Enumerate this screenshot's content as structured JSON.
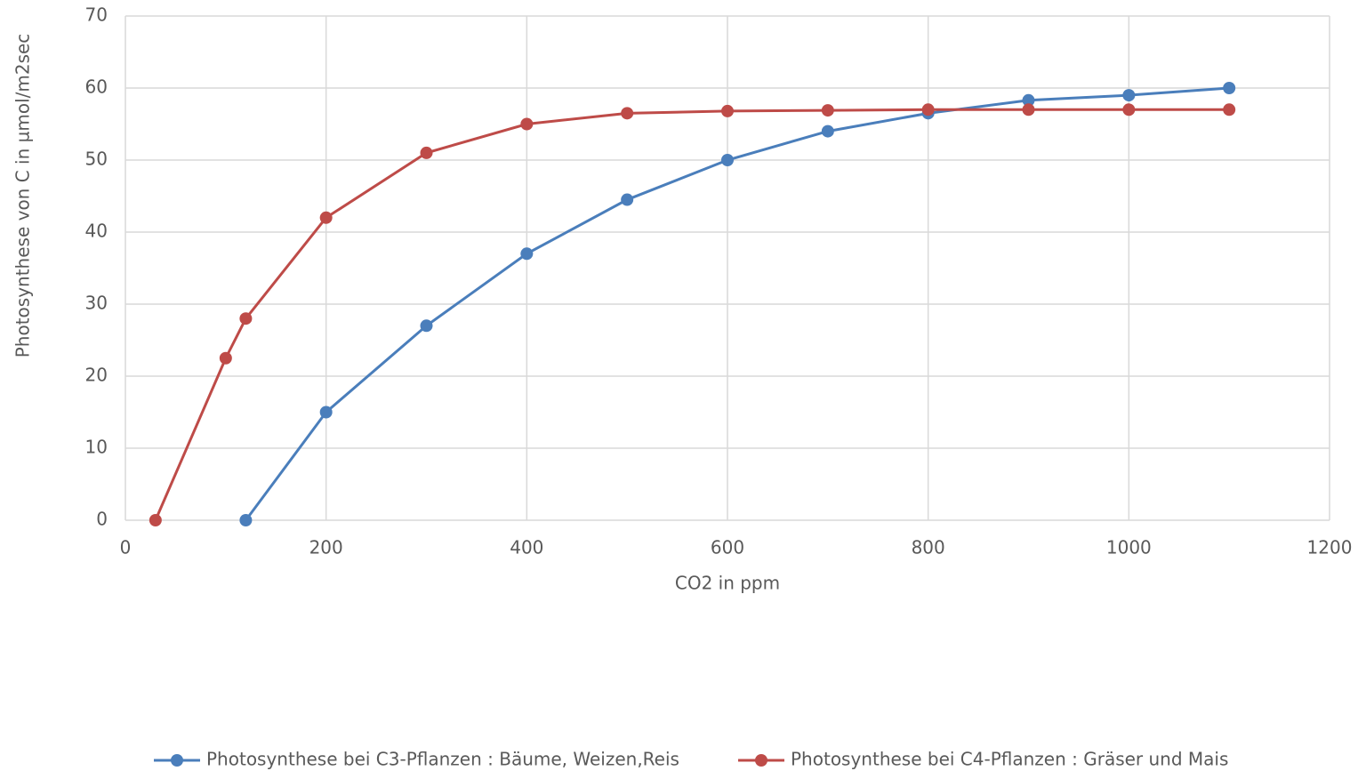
{
  "chart_data": {
    "type": "line",
    "x_label": "CO2 in ppm",
    "y_label": "Photosynthese von C in µmol/m2sec",
    "series": [
      {
        "name": "Photosynthese bei C3-Pflanzen : Bäume, Weizen,Reis",
        "color": "#4a7ebb",
        "x": [
          120,
          200,
          300,
          400,
          500,
          600,
          700,
          800,
          900,
          1000,
          1100
        ],
        "values": [
          0,
          15,
          27,
          37,
          44.5,
          50,
          54,
          56.5,
          58.3,
          59,
          60
        ]
      },
      {
        "name": "Photosynthese bei C4-Pflanzen : Gräser und Mais",
        "color": "#be4b48",
        "x": [
          30,
          100,
          120,
          200,
          300,
          400,
          500,
          600,
          700,
          800,
          900,
          1000,
          1100
        ],
        "values": [
          0,
          22.5,
          28,
          42,
          51,
          55,
          56.5,
          56.8,
          56.9,
          57,
          57,
          57,
          57
        ]
      }
    ],
    "xlim": [
      0,
      1200
    ],
    "xticks": [
      0,
      200,
      400,
      600,
      800,
      1000,
      1200
    ],
    "ylim": [
      0,
      70
    ],
    "yticks": [
      0,
      10,
      20,
      30,
      40,
      50,
      60,
      70
    ],
    "grid": true,
    "legend": "bottom"
  }
}
